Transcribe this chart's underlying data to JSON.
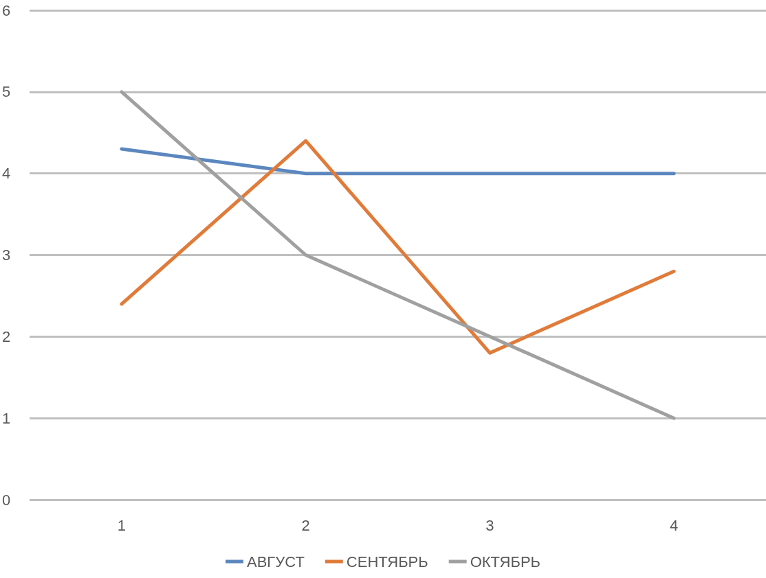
{
  "chart_data": {
    "type": "line",
    "categories": [
      "1",
      "2",
      "3",
      "4"
    ],
    "series": [
      {
        "name": "АВГУСТ",
        "color": "#5b87bf",
        "values": [
          4.3,
          4,
          4,
          4
        ]
      },
      {
        "name": "СЕНТЯБРЬ",
        "color": "#e07b39",
        "values": [
          2.4,
          4.4,
          1.8,
          2.8
        ]
      },
      {
        "name": "ОКТЯБРЬ",
        "color": "#a0a0a0",
        "values": [
          5,
          3,
          2,
          1
        ]
      }
    ],
    "ylim": [
      0,
      6
    ],
    "yticks": [
      0,
      1,
      2,
      3,
      4,
      5,
      6
    ],
    "grid": "y",
    "legend": "bottom",
    "marker": "none",
    "line_style": "solid"
  }
}
